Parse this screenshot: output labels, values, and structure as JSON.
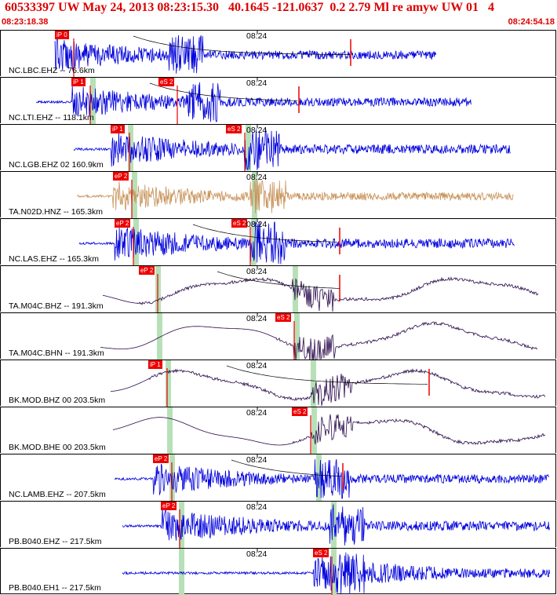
{
  "header": {
    "title": "60533397 UW May 24, 2013 08:23:15.30   40.1645 -121.0637  0.2 2.79 Ml re amyw UW 01   4",
    "start_time": "08:23:18.38",
    "end_time": "08:24:54.18"
  },
  "colors": {
    "accent": "#dd0000",
    "trace_blue": "#0000dd",
    "trace_tan": "#c8935a",
    "trace_purple": "#2a0a4a",
    "window_green": "#b8e0b8"
  },
  "panels": [
    {
      "label": "NC.LBC.EHZ -- 76.6km",
      "tick": "08:24",
      "color": "blue",
      "start": 69,
      "end": 555,
      "amp": 22,
      "kind": "noise",
      "picks": [
        {
          "label": "iP 0",
          "x": 69
        }
      ],
      "greens": [],
      "marker": 446
    },
    {
      "label": "NC.LTI.EHZ -- 118.1km",
      "tick": "08:24",
      "color": "blue",
      "start": 45,
      "end": 600,
      "amp": 22,
      "kind": "noise",
      "picks": [
        {
          "label": "iP 1",
          "x": 90
        },
        {
          "label": "eS 2",
          "x": 201
        }
      ],
      "greens": [
        117
      ],
      "marker": 380
    },
    {
      "label": "NC.LGB.EHZ 02 160.9km",
      "tick": "08:24",
      "color": "blue",
      "start": 93,
      "end": 650,
      "amp": 24,
      "kind": "noise",
      "picks": [
        {
          "label": "iP 1",
          "x": 140
        },
        {
          "label": "eS 2",
          "x": 287
        }
      ],
      "greens": [
        165,
        315
      ],
      "marker": null
    },
    {
      "label": "TA.N02D.HNZ -- 165.3km",
      "tick": "08:24",
      "color": "tan",
      "start": 97,
      "end": 654,
      "amp": 20,
      "kind": "noise",
      "picks": [
        {
          "label": "eP 2",
          "x": 143
        }
      ],
      "greens": [
        170,
        323
      ],
      "marker": null
    },
    {
      "label": "NC.LAS.EHZ -- 165.3km",
      "tick": "08:24",
      "color": "blue",
      "start": 100,
      "end": 655,
      "amp": 24,
      "kind": "noise",
      "picks": [
        {
          "label": "eP 2",
          "x": 145
        },
        {
          "label": "eS 2",
          "x": 294
        }
      ],
      "greens": [
        172,
        322
      ],
      "marker": 432
    },
    {
      "label": "TA.M04C.BHZ -- 191.3km",
      "tick": "08:24",
      "color": "purple",
      "start": 130,
      "end": 685,
      "amp": 20,
      "kind": "wave",
      "picks": [
        {
          "label": "eP 2",
          "x": 176
        }
      ],
      "greens": [
        200,
        375
      ],
      "marker": 432
    },
    {
      "label": "TA.M04C.BHN -- 191.3km",
      "tick": "08:24",
      "color": "purple",
      "start": 127,
      "end": 684,
      "amp": 22,
      "kind": "wave",
      "picks": [
        {
          "label": "eS 2",
          "x": 350
        }
      ],
      "greens": [
        202,
        377
      ],
      "marker": null
    },
    {
      "label": "BK.MOD.BHZ 00 203.5km",
      "tick": "08:24",
      "color": "purple",
      "start": 140,
      "end": 694,
      "amp": 22,
      "kind": "wave",
      "picks": [
        {
          "label": "iP 1",
          "x": 188
        }
      ],
      "greens": [
        213,
        398
      ],
      "marker": 546
    },
    {
      "label": "BK.MOD.BHE 00 203.5km",
      "tick": "08:24",
      "color": "purple",
      "start": 143,
      "end": 694,
      "amp": 22,
      "kind": "wave",
      "picks": [
        {
          "label": "eS 2",
          "x": 371
        }
      ],
      "greens": [
        215,
        399
      ],
      "marker": null
    },
    {
      "label": "NC.LAMB.EHZ -- 207.5km",
      "tick": "08:24",
      "color": "blue",
      "start": 145,
      "end": 699,
      "amp": 22,
      "kind": "noise",
      "picks": [
        {
          "label": "eP 2",
          "x": 194
        }
      ],
      "greens": [
        218,
        405
      ],
      "marker": 436
    },
    {
      "label": "PB.B040.EHZ -- 217.5km",
      "tick": "08:24",
      "color": "blue",
      "start": 155,
      "end": 700,
      "amp": 24,
      "kind": "noise",
      "picks": [
        {
          "label": "eP 2",
          "x": 204
        }
      ],
      "greens": [
        230,
        424
      ],
      "marker": null
    },
    {
      "label": "PB.B040.EH1 -- 217.5km",
      "tick": "08:24",
      "color": "blue",
      "start": 155,
      "end": 700,
      "amp": 24,
      "kind": "noise",
      "picks": [
        {
          "label": "eS 2",
          "x": 398
        }
      ],
      "greens": [
        230,
        424
      ],
      "marker": null
    }
  ]
}
